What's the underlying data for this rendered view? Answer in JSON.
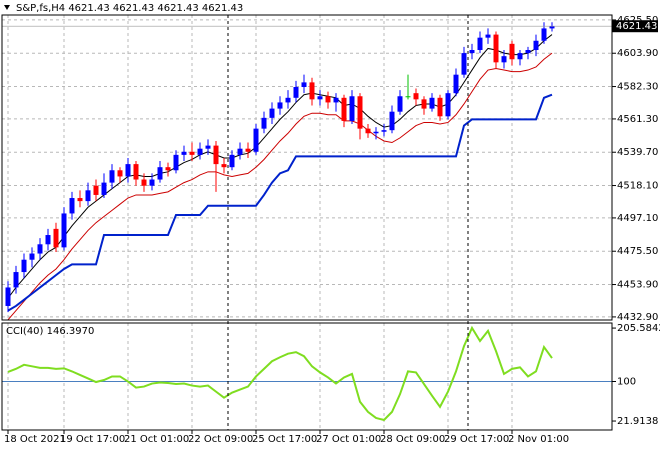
{
  "chart_data": [
    {
      "type": "candlestick",
      "title": "S&P,fs,H4  4621.43 4621.43 4621.43 4621.43",
      "bid_label": "4621.43",
      "ylim": [
        4430.9,
        4628.7
      ],
      "yticks": [
        {
          "value": 4625.5,
          "label": "4625.50"
        },
        {
          "value": 4603.9,
          "label": "4603.90"
        },
        {
          "value": 4582.3,
          "label": "4582.30"
        },
        {
          "value": 4561.3,
          "label": "4561.30"
        },
        {
          "value": 4539.7,
          "label": "4539.70"
        },
        {
          "value": 4518.1,
          "label": "4518.10"
        },
        {
          "value": 4497.1,
          "label": "4497.10"
        },
        {
          "value": 4475.5,
          "label": "4475.50"
        },
        {
          "value": 4453.9,
          "label": "4453.90"
        },
        {
          "value": 4432.9,
          "label": "4432.90"
        }
      ],
      "grid": true,
      "up_color": "#0000ff",
      "down_color": "#ff0000",
      "doji_color": "#00c000",
      "candles": [
        [
          4440,
          4456,
          4436,
          4452
        ],
        [
          4452,
          4466,
          4448,
          4462
        ],
        [
          4462,
          4474,
          4458,
          4470
        ],
        [
          4470,
          4478,
          4465,
          4474
        ],
        [
          4474,
          4484,
          4470,
          4480
        ],
        [
          4480,
          4490,
          4476,
          4486
        ],
        [
          4490,
          4494,
          4475,
          4478
        ],
        [
          4478,
          4504,
          4476,
          4500
        ],
        [
          4500,
          4514,
          4496,
          4510
        ],
        [
          4510,
          4515,
          4504,
          4508
        ],
        [
          4508,
          4520,
          4505,
          4515
        ],
        [
          4518,
          4522,
          4508,
          4512
        ],
        [
          4512,
          4526,
          4510,
          4520
        ],
        [
          4520,
          4532,
          4516,
          4528
        ],
        [
          4528,
          4530,
          4520,
          4524
        ],
        [
          4524,
          4536,
          4520,
          4532
        ],
        [
          4532,
          4534,
          4518,
          4522
        ],
        [
          4522,
          4526,
          4514,
          4518
        ],
        [
          4518,
          4526,
          4515,
          4522
        ],
        [
          4522,
          4534,
          4520,
          4530
        ],
        [
          4530,
          4533,
          4524,
          4528
        ],
        [
          4528,
          4541,
          4526,
          4538
        ],
        [
          4538,
          4544,
          4534,
          4540
        ],
        [
          4540,
          4546,
          4534,
          4538
        ],
        [
          4538,
          4546,
          4535,
          4542
        ],
        [
          4542,
          4548,
          4538,
          4544
        ],
        [
          4544,
          4547,
          4514,
          4532
        ],
        [
          4532,
          4536,
          4526,
          4530
        ],
        [
          4530,
          4541,
          4528,
          4538
        ],
        [
          4538,
          4546,
          4535,
          4542
        ],
        [
          4542,
          4546,
          4536,
          4540
        ],
        [
          4540,
          4558,
          4538,
          4555
        ],
        [
          4555,
          4566,
          4552,
          4562
        ],
        [
          4562,
          4572,
          4558,
          4568
        ],
        [
          4568,
          4576,
          4564,
          4572
        ],
        [
          4572,
          4580,
          4568,
          4575
        ],
        [
          4575,
          4586,
          4572,
          4582
        ],
        [
          4582,
          4590,
          4578,
          4585
        ],
        [
          4585,
          4588,
          4570,
          4574
        ],
        [
          4574,
          4580,
          4570,
          4576
        ],
        [
          4576,
          4579,
          4568,
          4572
        ],
        [
          4572,
          4578,
          4566,
          4575
        ],
        [
          4575,
          4577,
          4556,
          4560
        ],
        [
          4560,
          4580,
          4558,
          4576
        ],
        [
          4576,
          4578,
          4548,
          4555
        ],
        [
          4555,
          4558,
          4549,
          4552
        ],
        [
          4552,
          4556,
          4548,
          4553
        ],
        [
          4553,
          4558,
          4550,
          4554
        ],
        [
          4554,
          4570,
          4552,
          4566
        ],
        [
          4566,
          4580,
          4564,
          4576
        ],
        [
          4576,
          4590,
          4574,
          4576
        ],
        [
          4578,
          4581,
          4570,
          4574
        ],
        [
          4574,
          4576,
          4564,
          4568
        ],
        [
          4568,
          4578,
          4566,
          4575
        ],
        [
          4575,
          4577,
          4560,
          4563
        ],
        [
          4563,
          4580,
          4561,
          4578
        ],
        [
          4578,
          4594,
          4576,
          4590
        ],
        [
          4590,
          4608,
          4588,
          4604
        ],
        [
          4604,
          4610,
          4600,
          4606
        ],
        [
          4606,
          4618,
          4604,
          4614
        ],
        [
          4614,
          4620,
          4610,
          4616
        ],
        [
          4616,
          4618,
          4594,
          4598
        ],
        [
          4598,
          4606,
          4594,
          4602
        ],
        [
          4610,
          4612,
          4596,
          4600
        ],
        [
          4600,
          4606,
          4596,
          4604
        ],
        [
          4604,
          4608,
          4600,
          4606
        ],
        [
          4606,
          4616,
          4602,
          4612
        ],
        [
          4612,
          4624,
          4610,
          4620
        ],
        [
          4620,
          4624,
          4618,
          4621.43
        ]
      ],
      "series": [
        {
          "color": "#000000",
          "width": 1,
          "step": false,
          "values": [
            4445,
            4452,
            4458,
            4464,
            4470,
            4475,
            4478,
            4485,
            4492,
            4498,
            4504,
            4508,
            4512,
            4516,
            4520,
            4524,
            4525,
            4524,
            4524,
            4526,
            4527,
            4530,
            4533,
            4535,
            4538,
            4540,
            4538,
            4536,
            4536,
            4538,
            4539,
            4543,
            4549,
            4555,
            4561,
            4566,
            4572,
            4577,
            4578,
            4577,
            4576,
            4575,
            4570,
            4571,
            4568,
            4563,
            4559,
            4556,
            4557,
            4561,
            4566,
            4570,
            4571,
            4571,
            4569,
            4571,
            4577,
            4585,
            4593,
            4601,
            4607,
            4606,
            4604,
            4603,
            4603,
            4604,
            4607,
            4612,
            4616
          ]
        },
        {
          "color": "#cc0000",
          "width": 1,
          "step": false,
          "values": [
            4431,
            4437,
            4443,
            4449,
            4455,
            4460,
            4464,
            4470,
            4477,
            4483,
            4489,
            4494,
            4498,
            4502,
            4506,
            4510,
            4512,
            4512,
            4512,
            4513,
            4514,
            4517,
            4520,
            4522,
            4525,
            4527,
            4527,
            4525,
            4524,
            4525,
            4526,
            4530,
            4535,
            4541,
            4547,
            4552,
            4558,
            4563,
            4565,
            4565,
            4564,
            4564,
            4560,
            4560,
            4558,
            4554,
            4550,
            4547,
            4546,
            4549,
            4553,
            4557,
            4559,
            4559,
            4558,
            4559,
            4564,
            4571,
            4579,
            4587,
            4593,
            4594,
            4593,
            4592,
            4592,
            4593,
            4595,
            4600,
            4604
          ]
        },
        {
          "color": "#0022cc",
          "width": 2,
          "step": false,
          "values": [
            4437,
            4440,
            4444,
            4448,
            4452,
            4456,
            4460,
            4464,
            4467,
            4467,
            4467,
            4467,
            4486,
            4486,
            4486,
            4486,
            4486,
            4486,
            4486,
            4486,
            4486,
            4499,
            4499,
            4499,
            4499,
            4505,
            4505,
            4505,
            4505,
            4505,
            4505,
            4505,
            4512,
            4520,
            4526,
            4528,
            4537,
            4537,
            4537,
            4537,
            4537,
            4537,
            4537,
            4537,
            4537,
            4537,
            4537,
            4537,
            4537,
            4537,
            4537,
            4537,
            4537,
            4537,
            4537,
            4537,
            4537,
            4557,
            4561,
            4561,
            4561,
            4561,
            4561,
            4561,
            4561,
            4561,
            4561,
            4575,
            4577
          ]
        }
      ]
    },
    {
      "type": "line",
      "title": "CCI(40) 146.3970",
      "ylim": [
        4.2,
        215.6
      ],
      "yticks": [
        205.5842,
        100,
        21.9138
      ],
      "grid": false,
      "levels": [
        100
      ],
      "level_color": "#4a7fc0",
      "xticks": [
        {
          "value": 0,
          "label": "18 Oct 2021"
        },
        {
          "value": 7,
          "label": "19 Oct 17:00"
        },
        {
          "value": 15,
          "label": "21 Oct 01:00"
        },
        {
          "value": 23,
          "label": "22 Oct 09:00"
        },
        {
          "value": 31,
          "label": "25 Oct 17:00"
        },
        {
          "value": 39,
          "label": "27 Oct 01:00"
        },
        {
          "value": 47,
          "label": "28 Oct 09:00"
        },
        {
          "value": 55,
          "label": "29 Oct 17:00"
        },
        {
          "value": 63,
          "label": "2 Nov 01:00"
        }
      ],
      "series": [
        {
          "color": "#7fdd20",
          "width": 2,
          "values": [
            119,
            125,
            133,
            130,
            127,
            127,
            125,
            126,
            120,
            113,
            106,
            99,
            103,
            110,
            110,
            100,
            88,
            90,
            96,
            98,
            97,
            95,
            96,
            92,
            90,
            92,
            80,
            68,
            78,
            84,
            90,
            110,
            125,
            140,
            148,
            155,
            158,
            150,
            130,
            118,
            108,
            96,
            108,
            115,
            60,
            40,
            28,
            24,
            40,
            75,
            120,
            118,
            95,
            72,
            50,
            80,
            120,
            170,
            206,
            180,
            200,
            160,
            115,
            125,
            128,
            110,
            120,
            168,
            146.397
          ]
        }
      ]
    }
  ]
}
